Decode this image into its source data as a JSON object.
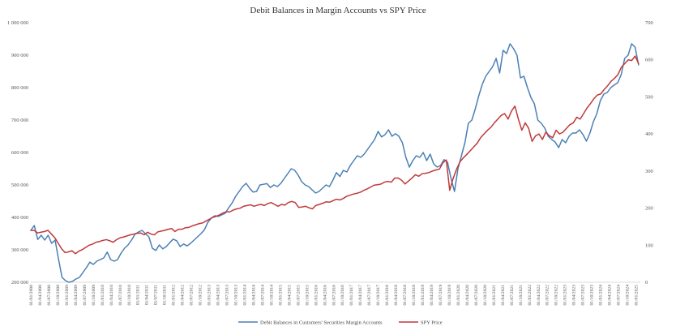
{
  "chart_data": {
    "type": "line",
    "title": "Debit Balances in Margin Accounts vs SPY Price",
    "x_labels": [
      "01/01/2008",
      "01/04/2008",
      "01/07/2008",
      "01/10/2008",
      "01/01/2009",
      "01/04/2009",
      "01/07/2009",
      "01/10/2009",
      "01/01/2010",
      "01/04/2010",
      "01/07/2010",
      "01/10/2010",
      "01/01/2011",
      "01/04/2011",
      "01/07/2011",
      "01/10/2011",
      "01/01/2012",
      "01/04/2012",
      "01/07/2012",
      "01/10/2012",
      "01/01/2013",
      "01/04/2013",
      "01/07/2013",
      "01/10/2013",
      "01/01/2014",
      "01/04/2014",
      "01/07/2014",
      "01/10/2014",
      "01/01/2015",
      "01/04/2015",
      "01/07/2015",
      "01/10/2015",
      "01/01/2016",
      "01/04/2016",
      "01/07/2016",
      "01/10/2016",
      "01/01/2017",
      "01/04/2017",
      "01/07/2017",
      "01/10/2017",
      "01/01/2018",
      "01/04/2018",
      "01/07/2018",
      "01/10/2018",
      "01/01/2019",
      "01/04/2019",
      "01/07/2019",
      "01/10/2019",
      "01/01/2020",
      "01/04/2020",
      "01/07/2020",
      "01/10/2020",
      "01/01/2021",
      "01/04/2021",
      "01/07/2021",
      "01/10/2021",
      "01/01/2022",
      "01/04/2022",
      "01/07/2022",
      "01/10/2022",
      "01/01/2023",
      "01/04/2023",
      "01/07/2023",
      "01/10/2023",
      "01/01/2024",
      "01/04/2024",
      "01/07/2024",
      "01/10/2024",
      "01/01/2025"
    ],
    "y_left": {
      "min": 200000,
      "max": 1000000,
      "ticks": [
        200000,
        300000,
        400000,
        500000,
        600000,
        700000,
        800000,
        900000,
        1000000
      ],
      "tick_labels": [
        "200 000",
        "300 000",
        "400 000",
        "500 000",
        "600 000",
        "700 000",
        "800 000",
        "900 000",
        "1 000 000"
      ]
    },
    "y_right": {
      "min": 0,
      "max": 700,
      "ticks": [
        0,
        100,
        200,
        300,
        400,
        500,
        600,
        700
      ],
      "tick_labels": [
        "0",
        "100",
        "200",
        "300",
        "400",
        "500",
        "600",
        "700"
      ]
    },
    "series": [
      {
        "name": "Debit Balances in Customers' Securities Margin Accounts",
        "axis": "left",
        "color": "#4a7fb5",
        "values": [
          360000,
          375000,
          332000,
          345000,
          330000,
          345000,
          320000,
          330000,
          270000,
          215000,
          205000,
          200000,
          203000,
          210000,
          215000,
          230000,
          245000,
          262000,
          255000,
          265000,
          270000,
          275000,
          293000,
          270000,
          265000,
          270000,
          290000,
          305000,
          315000,
          330000,
          348000,
          355000,
          360000,
          350000,
          340000,
          305000,
          298000,
          315000,
          303000,
          310000,
          322000,
          333000,
          328000,
          310000,
          318000,
          312000,
          320000,
          330000,
          340000,
          350000,
          362000,
          385000,
          398000,
          405000,
          403000,
          408000,
          413000,
          430000,
          445000,
          465000,
          480000,
          495000,
          505000,
          490000,
          478000,
          480000,
          500000,
          502000,
          504000,
          492000,
          500000,
          495000,
          505000,
          520000,
          535000,
          550000,
          545000,
          530000,
          510000,
          500000,
          495000,
          485000,
          475000,
          480000,
          490000,
          500000,
          495000,
          515000,
          538000,
          526000,
          545000,
          540000,
          560000,
          575000,
          590000,
          585000,
          595000,
          610000,
          625000,
          640000,
          665000,
          648000,
          655000,
          670000,
          650000,
          658000,
          650000,
          630000,
          585000,
          555000,
          575000,
          590000,
          585000,
          600000,
          575000,
          595000,
          565000,
          555000,
          560000,
          578000,
          570000,
          520000,
          480000,
          550000,
          590000,
          630000,
          690000,
          700000,
          735000,
          775000,
          810000,
          835000,
          850000,
          865000,
          890000,
          845000,
          915000,
          905000,
          935000,
          920000,
          900000,
          830000,
          835000,
          800000,
          770000,
          750000,
          700000,
          690000,
          675000,
          650000,
          640000,
          632000,
          615000,
          640000,
          630000,
          650000,
          660000,
          660000,
          670000,
          655000,
          635000,
          660000,
          695000,
          720000,
          760000,
          780000,
          785000,
          800000,
          808000,
          815000,
          840000,
          890000,
          900000,
          935000,
          925000,
          870000
        ],
        "x_start_index": 0,
        "x_end_index": 68.3
      },
      {
        "name": "SPY Price",
        "axis": "right",
        "color": "#c0393b",
        "values": [
          140,
          140,
          133,
          135,
          137,
          140,
          130,
          120,
          105,
          90,
          80,
          82,
          85,
          77,
          84,
          88,
          94,
          100,
          103,
          108,
          110,
          113,
          115,
          112,
          108,
          115,
          120,
          122,
          125,
          128,
          130,
          132,
          133,
          128,
          135,
          130,
          128,
          136,
          138,
          140,
          143,
          145,
          137,
          143,
          143,
          147,
          148,
          152,
          155,
          158,
          160,
          165,
          170,
          175,
          178,
          182,
          187,
          190,
          190,
          195,
          198,
          200,
          205,
          207,
          209,
          205,
          208,
          210,
          207,
          212,
          215,
          210,
          205,
          210,
          208,
          215,
          218,
          215,
          202,
          203,
          205,
          201,
          198,
          207,
          210,
          213,
          217,
          216,
          220,
          224,
          222,
          226,
          232,
          235,
          238,
          240,
          243,
          248,
          252,
          257,
          262,
          263,
          265,
          270,
          272,
          270,
          281,
          281,
          275,
          265,
          273,
          281,
          290,
          286,
          293,
          294,
          296,
          300,
          303,
          305,
          322,
          330,
          248,
          280,
          305,
          325,
          336,
          345,
          355,
          365,
          375,
          390,
          400,
          410,
          418,
          430,
          440,
          450,
          455,
          440,
          462,
          475,
          440,
          410,
          430,
          415,
          380,
          395,
          400,
          385,
          405,
          395,
          390,
          410,
          400,
          405,
          415,
          425,
          430,
          445,
          440,
          455,
          470,
          482,
          495,
          505,
          508,
          520,
          530,
          542,
          550,
          560,
          580,
          590,
          600,
          598,
          610,
          590
        ],
        "x_start_index": 0,
        "x_end_index": 68.3
      }
    ],
    "legend": {
      "placement": "bottom-center",
      "entries": [
        "Debit Balances in Customers' Securities Margin Accounts",
        "SPY Price"
      ]
    },
    "grid": false
  }
}
